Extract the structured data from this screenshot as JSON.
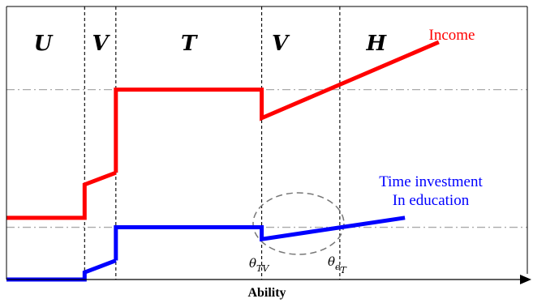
{
  "chart_data": {
    "type": "line",
    "title": "",
    "xlabel": "Ability",
    "ylabel": "",
    "regions": [
      "U",
      "V",
      "T",
      "V",
      "H"
    ],
    "thresholds": [
      {
        "name": "theta_TV",
        "base": "θ",
        "sub": "TV",
        "subsub": ""
      },
      {
        "name": "theta_eT",
        "base": "θ",
        "sub": "e",
        "subsub": "T"
      }
    ],
    "reference_levels": [
      0.8,
      0.22
    ],
    "series": [
      {
        "name": "Income",
        "label_lines": [
          "Income"
        ],
        "color": "#ff0000",
        "x": [
          0,
          0.15,
          0.15,
          0.21,
          0.21,
          0.49,
          0.49,
          0.83
        ],
        "y": [
          0.26,
          0.26,
          0.4,
          0.45,
          0.8,
          0.8,
          0.68,
          1.0
        ],
        "breaks": [
          3
        ]
      },
      {
        "name": "Time investment In education",
        "label_lines": [
          "Time investment",
          "In education"
        ],
        "color": "#0000ff",
        "x": [
          0,
          0.15,
          0.15,
          0.21,
          0.21,
          0.49,
          0.49,
          0.765
        ],
        "y": [
          0,
          0,
          0.03,
          0.08,
          0.22,
          0.22,
          0.17,
          0.26
        ],
        "breaks": [
          3
        ]
      }
    ]
  }
}
